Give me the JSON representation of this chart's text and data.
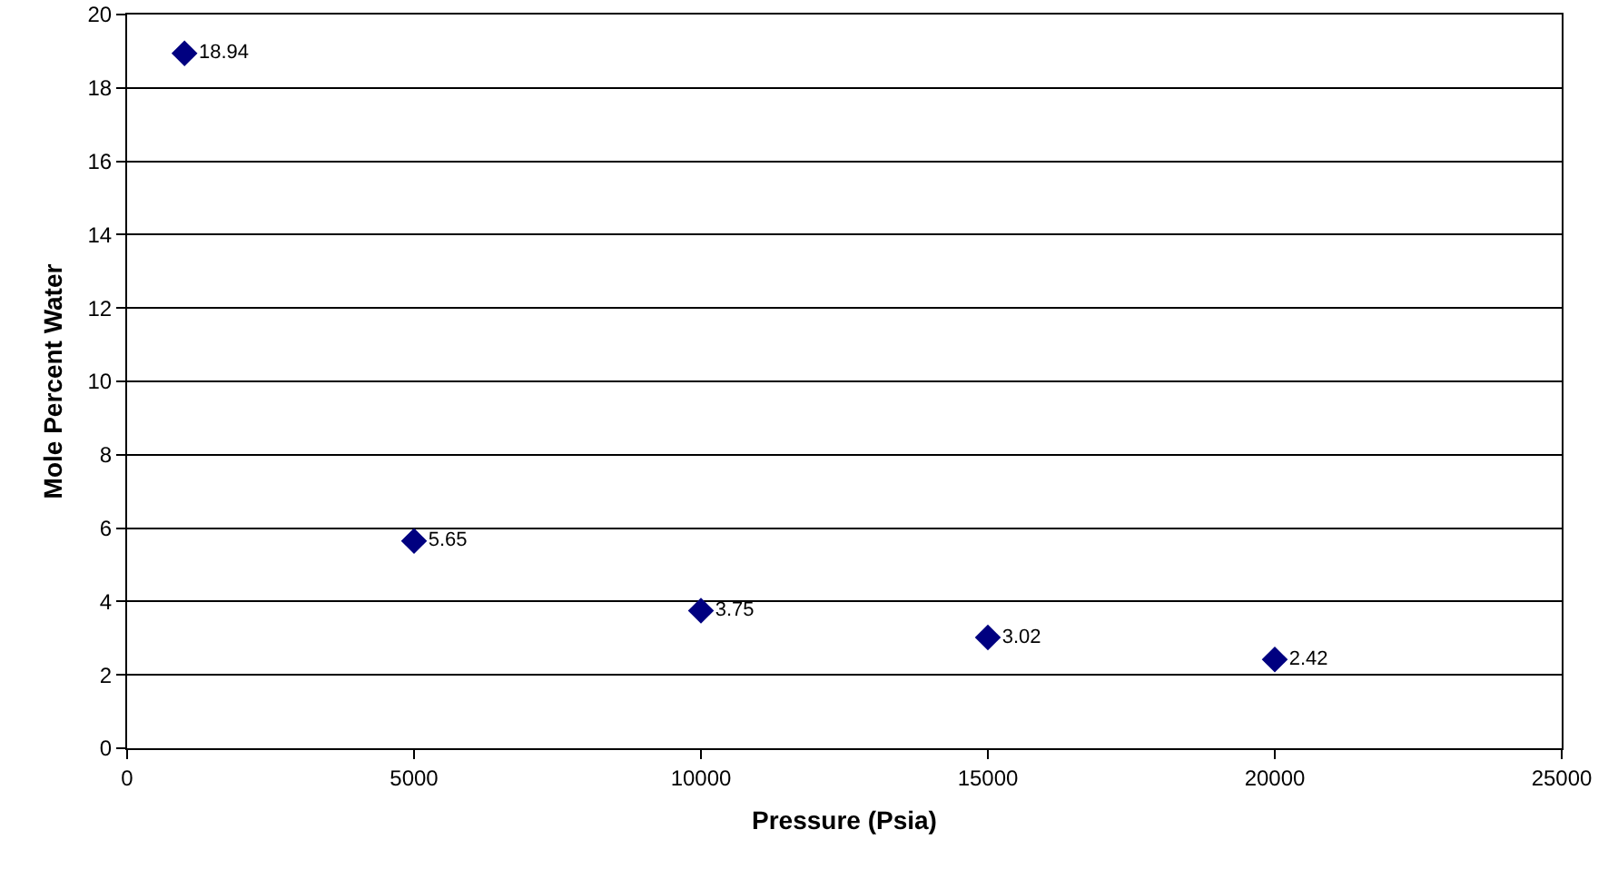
{
  "chart_data": {
    "type": "scatter",
    "xlabel": "Pressure (Psia)",
    "ylabel": "Mole Percent Water",
    "x": [
      1000,
      5000,
      10000,
      15000,
      20000
    ],
    "series": [
      {
        "color": "#000080",
        "values": [
          18.94,
          5.65,
          3.75,
          3.02,
          2.42
        ]
      }
    ],
    "xlim": [
      0,
      25000
    ],
    "xticks": [
      0,
      5000,
      10000,
      15000,
      20000,
      25000
    ],
    "ylim": [
      0,
      20
    ],
    "yticks": [
      0,
      2,
      4,
      6,
      8,
      10,
      12,
      14,
      16,
      18,
      20
    ],
    "grid": "y",
    "marker": "diamond",
    "data_labels": true
  }
}
